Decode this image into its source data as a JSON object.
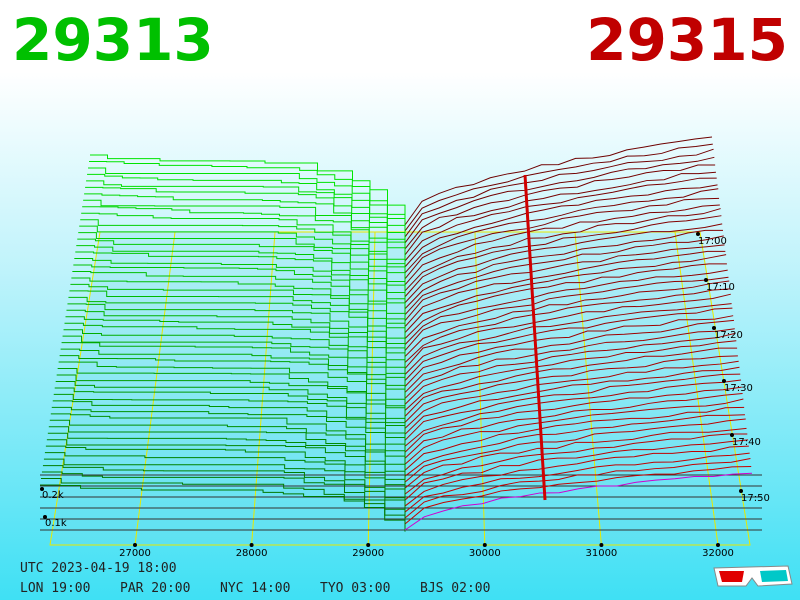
{
  "header": {
    "bid": "29313",
    "ask": "29315"
  },
  "price_axis": {
    "labels": [
      "27000",
      "28000",
      "29000",
      "30000",
      "31000",
      "32000"
    ]
  },
  "depth_axis": {
    "labels": [
      "0.2k",
      "0.1k"
    ]
  },
  "time_axis": {
    "labels": [
      "17:00",
      "17:10",
      "17:20",
      "17:30",
      "17:40",
      "17:50"
    ]
  },
  "clock": {
    "utc": "UTC 2023-04-19 18:00",
    "zones": [
      "LON 19:00",
      "PAR 20:00",
      "NYC 14:00",
      "TYO 03:00",
      "BJS 02:00"
    ]
  }
}
